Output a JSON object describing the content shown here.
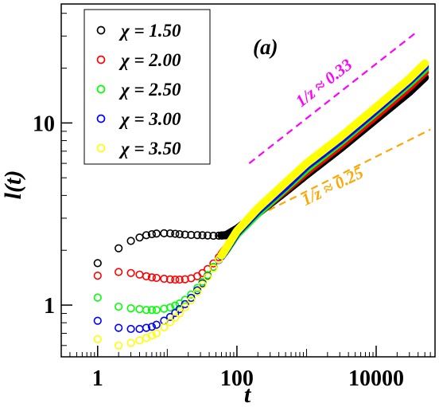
{
  "chart_data": {
    "type": "scatter",
    "title": "",
    "xlabel": "t",
    "ylabel": "l(t)",
    "xscale": "log",
    "yscale": "log",
    "xlim": [
      0.3,
      70000
    ],
    "ylim": [
      0.52,
      45
    ],
    "grid": false,
    "legend_position": "top-left",
    "panel_label": "(a)",
    "x_ticks": [
      {
        "value": 1,
        "label": "1"
      },
      {
        "value": 100,
        "label": "100"
      },
      {
        "value": 10000,
        "label": "10000"
      }
    ],
    "y_ticks": [
      {
        "value": 1,
        "label": "1"
      },
      {
        "value": 10,
        "label": "10"
      }
    ],
    "series": [
      {
        "name": "χ = 1.50",
        "color": "#000000",
        "x": [
          1,
          2,
          3,
          4,
          5,
          6,
          7,
          8,
          10,
          12,
          15,
          20,
          30,
          50,
          70,
          100,
          200,
          500,
          1000,
          3000,
          10000,
          30000,
          50000
        ],
        "y": [
          1.7,
          2.05,
          2.25,
          2.35,
          2.42,
          2.45,
          2.47,
          2.48,
          2.48,
          2.47,
          2.45,
          2.43,
          2.42,
          2.4,
          2.42,
          2.62,
          3.2,
          4.2,
          5.2,
          7.2,
          10.5,
          14.8,
          17.8
        ]
      },
      {
        "name": "χ = 2.00",
        "color": "#ff0000",
        "x": [
          1,
          2,
          3,
          4,
          5,
          6,
          7,
          8,
          10,
          12,
          15,
          20,
          25,
          30,
          40,
          50,
          70,
          100,
          200,
          500,
          1000,
          3000,
          10000,
          30000,
          50000
        ],
        "y": [
          1.45,
          1.52,
          1.5,
          1.47,
          1.44,
          1.42,
          1.41,
          1.4,
          1.39,
          1.38,
          1.38,
          1.39,
          1.42,
          1.47,
          1.6,
          1.75,
          2.05,
          2.48,
          3.2,
          4.3,
          5.4,
          7.5,
          11.0,
          15.8,
          19.0
        ]
      },
      {
        "name": "χ = 2.50",
        "color": "#00ff00",
        "x": [
          1,
          2,
          3,
          4,
          5,
          6,
          7,
          8,
          10,
          12,
          15,
          20,
          25,
          30,
          40,
          50,
          70,
          100,
          200,
          500,
          1000,
          3000,
          10000,
          30000,
          50000
        ],
        "y": [
          1.1,
          0.98,
          0.96,
          0.95,
          0.94,
          0.94,
          0.94,
          0.95,
          0.96,
          0.98,
          1.02,
          1.1,
          1.2,
          1.3,
          1.5,
          1.7,
          2.0,
          2.45,
          3.2,
          4.4,
          5.6,
          7.8,
          11.5,
          16.5,
          19.8
        ]
      },
      {
        "name": "χ = 3.00",
        "color": "#0000ff",
        "x": [
          1,
          2,
          3,
          4,
          5,
          6,
          7,
          8,
          10,
          12,
          15,
          20,
          25,
          30,
          40,
          50,
          70,
          100,
          200,
          500,
          1000,
          3000,
          10000,
          30000,
          50000
        ],
        "y": [
          0.82,
          0.75,
          0.74,
          0.74,
          0.75,
          0.76,
          0.78,
          0.8,
          0.84,
          0.88,
          0.95,
          1.05,
          1.16,
          1.27,
          1.48,
          1.68,
          2.02,
          2.5,
          3.3,
          4.5,
          5.8,
          8.0,
          11.8,
          17.0,
          20.5
        ]
      },
      {
        "name": "χ = 3.50",
        "color": "#ffff00",
        "x": [
          1,
          2,
          3,
          4,
          5,
          6,
          7,
          8,
          10,
          12,
          15,
          20,
          25,
          30,
          40,
          50,
          70,
          100,
          200,
          500,
          1000,
          3000,
          10000,
          30000,
          50000
        ],
        "y": [
          0.65,
          0.6,
          0.62,
          0.64,
          0.66,
          0.68,
          0.7,
          0.73,
          0.78,
          0.83,
          0.9,
          1.02,
          1.13,
          1.25,
          1.47,
          1.68,
          2.05,
          2.55,
          3.4,
          4.7,
          6.0,
          8.3,
          12.2,
          17.5,
          21.2
        ]
      }
    ],
    "annotations": [
      {
        "text": "1/z ≈ 0.33",
        "color": "#ff00ff",
        "x": [
          150,
          40000
        ],
        "y": [
          6.0,
          32.0
        ]
      },
      {
        "text": "1/z ≈ 0.25",
        "color": "#ffa500",
        "x": [
          200,
          60000
        ],
        "y": [
          3.1,
          9.2
        ]
      }
    ]
  }
}
